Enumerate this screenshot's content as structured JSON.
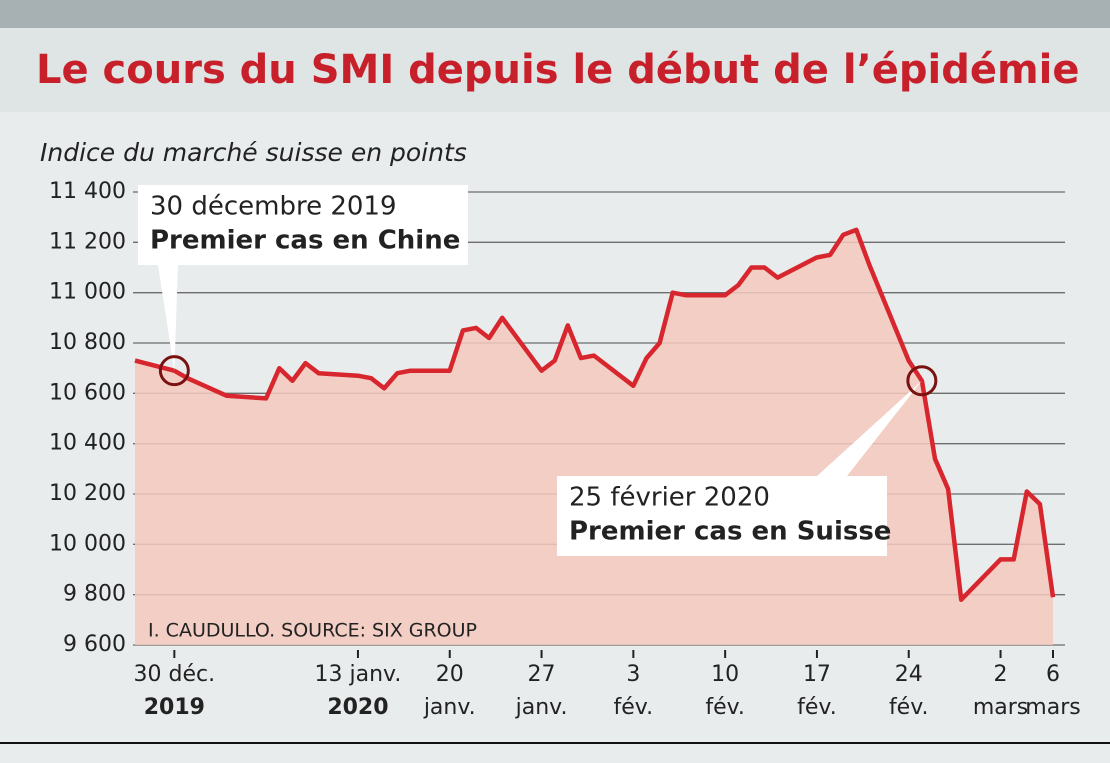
{
  "chart_data": {
    "type": "line",
    "title": "Le cours du SMI depuis le début de l’épidémie",
    "subtitle": "Indice du marché suisse en points",
    "source": "I. CAUDULLO. SOURCE: SIX GROUP",
    "color": "#d8262e",
    "area_color": "#f3c9bd",
    "x": [
      "2019-12-27",
      "2019-12-30",
      "2019-12-31",
      "2020-01-03",
      "2020-01-06",
      "2020-01-07",
      "2020-01-08",
      "2020-01-09",
      "2020-01-10",
      "2020-01-13",
      "2020-01-14",
      "2020-01-15",
      "2020-01-16",
      "2020-01-17",
      "2020-01-20",
      "2020-01-21",
      "2020-01-22",
      "2020-01-23",
      "2020-01-24",
      "2020-01-27",
      "2020-01-28",
      "2020-01-29",
      "2020-01-30",
      "2020-01-31",
      "2020-02-03",
      "2020-02-04",
      "2020-02-05",
      "2020-02-06",
      "2020-02-07",
      "2020-02-10",
      "2020-02-11",
      "2020-02-12",
      "2020-02-13",
      "2020-02-14",
      "2020-02-17",
      "2020-02-18",
      "2020-02-19",
      "2020-02-20",
      "2020-02-21",
      "2020-02-24",
      "2020-02-25",
      "2020-02-26",
      "2020-02-27",
      "2020-02-28",
      "2020-03-02",
      "2020-03-03",
      "2020-03-04",
      "2020-03-05",
      "2020-03-06"
    ],
    "values": [
      10730,
      10690,
      10660,
      10590,
      10580,
      10700,
      10650,
      10720,
      10680,
      10670,
      10660,
      10620,
      10680,
      10690,
      10690,
      10850,
      10860,
      10820,
      10900,
      10690,
      10730,
      10870,
      10740,
      10750,
      10630,
      10740,
      10800,
      11000,
      10990,
      10990,
      11030,
      11100,
      11100,
      11060,
      11140,
      11150,
      11230,
      11250,
      11110,
      10730,
      10650,
      10340,
      10220,
      9780,
      9940,
      9940,
      10210,
      10160,
      9790
    ],
    "xlim": [
      "2019-12-27",
      "2020-03-06"
    ],
    "xticks": [
      {
        "value": "2019-12-30",
        "label": [
          "30 déc.",
          "2019"
        ]
      },
      {
        "value": "2020-01-13",
        "label": [
          "13 janv.",
          "2020"
        ]
      },
      {
        "value": "2020-01-20",
        "label": [
          "20",
          "janv."
        ]
      },
      {
        "value": "2020-01-27",
        "label": [
          "27",
          "janv."
        ]
      },
      {
        "value": "2020-02-03",
        "label": [
          "3",
          "fév."
        ]
      },
      {
        "value": "2020-02-10",
        "label": [
          "10",
          "fév."
        ]
      },
      {
        "value": "2020-02-17",
        "label": [
          "17",
          "fév."
        ]
      },
      {
        "value": "2020-02-24",
        "label": [
          "24",
          "fév."
        ]
      },
      {
        "value": "2020-03-02",
        "label": [
          "2",
          "mars"
        ]
      },
      {
        "value": "2020-03-06",
        "label": [
          "6",
          "mars"
        ]
      }
    ],
    "ylim": [
      9600,
      11400
    ],
    "yticks": [
      {
        "value": 9600,
        "label": "9 600"
      },
      {
        "value": 9800,
        "label": "9 800"
      },
      {
        "value": 10000,
        "label": "10 000"
      },
      {
        "value": 10200,
        "label": "10 200"
      },
      {
        "value": 10400,
        "label": "10 400"
      },
      {
        "value": 10600,
        "label": "10 600"
      },
      {
        "value": 10800,
        "label": "10 800"
      },
      {
        "value": 11000,
        "label": "11 000"
      },
      {
        "value": 11200,
        "label": "11 200"
      },
      {
        "value": 11400,
        "label": "11 400"
      }
    ],
    "grid": true,
    "annotations": [
      {
        "date": "30 décembre 2019",
        "text": "Premier cas en Chine",
        "x": "2019-12-30"
      },
      {
        "date": "25 février 2020",
        "text": "Premier cas en Suisse",
        "x": "2020-02-25"
      }
    ]
  }
}
